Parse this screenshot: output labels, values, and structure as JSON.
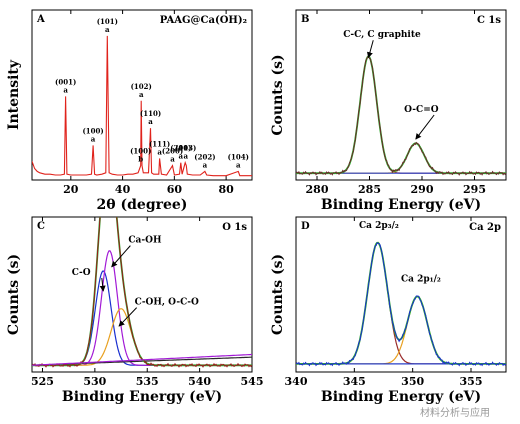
{
  "figure": {
    "watermark": "材料分析与应用"
  },
  "chart_data": [
    {
      "panel": "A",
      "type": "line",
      "tag": "PAAG@Ca(OH)₂",
      "xlabel": "2θ (degree)",
      "ylabel": "Intensity",
      "xlim": [
        5,
        90
      ],
      "xticks": [
        "20",
        "40",
        "60",
        "80"
      ],
      "series": [
        {
          "color": "#e0231c",
          "x": [
            5,
            6,
            7,
            8,
            10,
            12,
            14,
            16,
            17.5,
            18,
            18.5,
            20,
            22,
            24,
            26,
            28,
            28.6,
            29.2,
            30,
            32,
            33.5,
            34.1,
            34.8,
            36,
            38,
            40,
            42,
            44,
            46,
            47,
            47.2,
            47.5,
            48,
            50,
            50.8,
            51.2,
            52,
            54,
            54.3,
            55,
            57,
            59.3,
            60,
            62,
            62.5,
            63,
            64.2,
            64.6,
            65,
            67,
            70,
            71.8,
            72.5,
            75,
            80,
            84.7,
            85.3,
            88,
            90
          ],
          "y": [
            0.13,
            0.08,
            0.06,
            0.05,
            0.04,
            0.04,
            0.035,
            0.035,
            0.04,
            0.58,
            0.04,
            0.035,
            0.035,
            0.035,
            0.035,
            0.04,
            0.24,
            0.04,
            0.035,
            0.04,
            0.05,
            1.0,
            0.05,
            0.04,
            0.035,
            0.035,
            0.04,
            0.04,
            0.05,
            0.1,
            0.55,
            0.1,
            0.05,
            0.05,
            0.36,
            0.05,
            0.04,
            0.04,
            0.15,
            0.04,
            0.035,
            0.1,
            0.035,
            0.04,
            0.12,
            0.04,
            0.12,
            0.1,
            0.04,
            0.035,
            0.035,
            0.06,
            0.035,
            0.03,
            0.03,
            0.06,
            0.03,
            0.03,
            0.03
          ]
        }
      ],
      "peak_labels": [
        {
          "x": 18.0,
          "y": 0.58,
          "hkl": "(001)",
          "mark": "a"
        },
        {
          "x": 28.6,
          "y": 0.24,
          "hkl": "(100)",
          "mark": "a"
        },
        {
          "x": 34.1,
          "y": 1.0,
          "hkl": "(101)",
          "mark": "a"
        },
        {
          "x": 47.2,
          "y": 0.55,
          "hkl": "(102)",
          "mark": "a"
        },
        {
          "x": 50.8,
          "y": 0.36,
          "hkl": "(110)",
          "mark": "a"
        },
        {
          "x": 54.3,
          "y": 0.15,
          "hkl": "(111)",
          "mark": "a"
        },
        {
          "x": 59.3,
          "y": 0.1,
          "hkl": "(200)",
          "mark": "a"
        },
        {
          "x": 62.5,
          "y": 0.12,
          "hkl": "(201)",
          "mark": "a"
        },
        {
          "x": 64.4,
          "y": 0.12,
          "hkl": "(103)",
          "mark": "a"
        },
        {
          "x": 71.8,
          "y": 0.06,
          "hkl": "(202)",
          "mark": "a"
        },
        {
          "x": 84.7,
          "y": 0.06,
          "hkl": "(104)",
          "mark": "a"
        },
        {
          "x": 47.0,
          "y": 0.1,
          "hkl": "(100)",
          "mark": "b",
          "color": "#1f2fbf"
        }
      ]
    },
    {
      "panel": "B",
      "type": "line",
      "tag": "C 1s",
      "xlabel": "Binding Energy (eV)",
      "ylabel": "Counts (s)",
      "xlim": [
        278,
        298
      ],
      "xticks": [
        "280",
        "285",
        "290",
        "295"
      ],
      "curves": [
        {
          "role": "fit-peak",
          "color": "#9a2a2a",
          "center": 284.9,
          "height": 0.86,
          "width": 0.8,
          "baseline": 0.05
        },
        {
          "role": "fit-peak",
          "color": "#e3a21a",
          "center": 289.4,
          "height": 0.22,
          "width": 0.8,
          "baseline": 0.05
        },
        {
          "role": "background",
          "color": "#2840c8",
          "shape": "flat",
          "level": 0.05
        },
        {
          "role": "envelope",
          "color": "#2eaa2e",
          "peaks": [
            [
              284.9,
              0.86,
              0.8
            ],
            [
              289.4,
              0.22,
              0.8
            ]
          ],
          "baseline": 0.05
        },
        {
          "role": "raw",
          "color": "#6a2a2a",
          "peaks": [
            [
              284.9,
              0.86,
              0.8
            ],
            [
              289.4,
              0.22,
              0.8
            ]
          ],
          "baseline": 0.05
        }
      ],
      "annotations": [
        {
          "text": "C-C, C graphite",
          "x": 284.9,
          "y": 0.9,
          "tx": 282.5,
          "ty": 1.05
        },
        {
          "text": "O-C=O",
          "x": 289.4,
          "y": 0.3,
          "tx": 288.3,
          "ty": 0.5
        }
      ]
    },
    {
      "panel": "C",
      "type": "line",
      "tag": "O 1s",
      "xlabel": "Binding Energy (eV)",
      "ylabel": "Counts (s)",
      "xlim": [
        524,
        545
      ],
      "xticks": [
        "525",
        "530",
        "535",
        "540",
        "545"
      ],
      "curves": [
        {
          "role": "fit-peak",
          "color": "#1a2fcf",
          "center": 530.8,
          "height": 0.7,
          "width": 0.75,
          "baseline": 0.05
        },
        {
          "role": "fit-peak",
          "color": "#a21ad6",
          "center": 531.4,
          "height": 0.85,
          "width": 0.75,
          "baseline": 0.05
        },
        {
          "role": "fit-peak",
          "color": "#e8a020",
          "center": 532.5,
          "height": 0.42,
          "width": 0.95,
          "baseline": 0.05
        },
        {
          "role": "background",
          "color": "#2a2a2a",
          "shape": "sloped",
          "level": 0.05,
          "rise": 0.06
        },
        {
          "role": "envelope",
          "color": "#2eaa2e",
          "peaks": [
            [
              530.8,
              0.7,
              0.75
            ],
            [
              531.4,
              0.85,
              0.75
            ],
            [
              532.5,
              0.42,
              0.95
            ]
          ],
          "baseline": 0.05
        },
        {
          "role": "raw",
          "color": "#9a1a1a",
          "peaks": [
            [
              530.8,
              0.7,
              0.75
            ],
            [
              531.4,
              0.85,
              0.75
            ],
            [
              532.5,
              0.42,
              0.95
            ]
          ],
          "baseline": 0.05
        },
        {
          "role": "tail",
          "color": "#a21ad6",
          "shape": "sloped",
          "level": 0.05,
          "rise": 0.08
        }
      ],
      "annotations": [
        {
          "text": "Ca-OH",
          "x": 531.6,
          "y": 0.78,
          "tx": 533.2,
          "ty": 0.96
        },
        {
          "text": "C-O",
          "x": 530.8,
          "y": 0.6,
          "tx": 527.8,
          "ty": 0.72
        },
        {
          "text": "C-OH, O-C-O",
          "x": 532.3,
          "y": 0.34,
          "tx": 533.8,
          "ty": 0.5
        }
      ]
    },
    {
      "panel": "D",
      "type": "line",
      "tag": "Ca 2p",
      "xlabel": "Binding Energy (eV)",
      "ylabel": "Counts (s)",
      "xlim": [
        340,
        358
      ],
      "xticks": [
        "340",
        "345",
        "350",
        "355"
      ],
      "curves": [
        {
          "role": "fit-peak",
          "color": "#9a2a2a",
          "center": 347.0,
          "height": 0.9,
          "width": 0.85,
          "baseline": 0.06
        },
        {
          "role": "fit-peak",
          "color": "#e8a020",
          "center": 350.4,
          "height": 0.5,
          "width": 0.85,
          "baseline": 0.06
        },
        {
          "role": "background",
          "color": "#2840c8",
          "shape": "flat",
          "level": 0.06
        },
        {
          "role": "envelope",
          "color": "#2eaa2e",
          "peaks": [
            [
              347.0,
              0.9,
              0.85
            ],
            [
              350.4,
              0.5,
              0.85
            ]
          ],
          "baseline": 0.06
        },
        {
          "role": "raw",
          "color": "#1a2fcf",
          "peaks": [
            [
              347.0,
              0.9,
              0.85
            ],
            [
              350.4,
              0.5,
              0.85
            ]
          ],
          "baseline": 0.06
        }
      ],
      "annotations": [
        {
          "text": "Ca 2p₃/₂",
          "x": 347.0,
          "y": 0.98,
          "tx": 345.4,
          "ty": 1.07,
          "arrow": false
        },
        {
          "text": "Ca 2p₁/₂",
          "x": 350.4,
          "y": 0.6,
          "tx": 349.0,
          "ty": 0.67,
          "arrow": false
        }
      ]
    }
  ]
}
